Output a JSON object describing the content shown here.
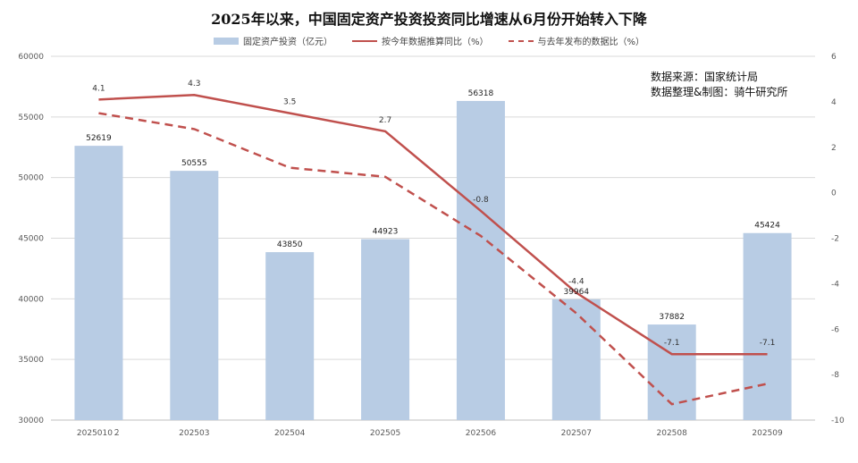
{
  "title": "2025年以来，中国固定资产投资投资同比增速从6月份开始转入下降",
  "legend": {
    "bar": "固定资产投资（亿元）",
    "line": "按今年数据推算同比（%）",
    "dash": "与去年发布的数据比（%）"
  },
  "source": {
    "line1": "数据来源：国家统计局",
    "line2": "数据整理&制图：骑牛研究所"
  },
  "colors": {
    "bar": "#b8cce4",
    "line": "#c0504d"
  },
  "chart_data": {
    "type": "bar",
    "categories": [
      "2025010２",
      "202503",
      "202504",
      "202505",
      "202506",
      "202507",
      "202508",
      "202509"
    ],
    "series": [
      {
        "name": "固定资产投资（亿元）",
        "axis": "left",
        "kind": "bar",
        "values": [
          52619,
          50555,
          43850,
          44923,
          56318,
          39964,
          37882,
          45424
        ]
      },
      {
        "name": "按今年数据推算同比（%）",
        "axis": "right",
        "kind": "line",
        "values": [
          4.1,
          4.3,
          3.5,
          2.7,
          -0.8,
          -4.4,
          -7.1,
          -7.1
        ],
        "labels": [
          "4.1",
          "4.3",
          "3.5",
          "2.7",
          "-0.8",
          "-4.4",
          "-7.1",
          "-7.1"
        ]
      },
      {
        "name": "与去年发布的数据比（%）",
        "axis": "right",
        "kind": "dashed-line",
        "values": [
          3.5,
          2.8,
          1.1,
          0.7,
          -1.9,
          -5.3,
          -9.3,
          -8.4
        ]
      }
    ],
    "bar_labels": [
      "52619",
      "50555",
      "43850",
      "44923",
      "56318",
      "39964",
      "37882",
      "45424"
    ],
    "ylim": [
      30000,
      60000
    ],
    "y_ticks": [
      "30000",
      "35000",
      "40000",
      "45000",
      "50000",
      "55000",
      "60000"
    ],
    "y2lim": [
      -10,
      6
    ],
    "y2_ticks": [
      "-10",
      "-8",
      "-6",
      "-4",
      "-2",
      "0",
      "2",
      "4",
      "6"
    ],
    "grid": true
  }
}
